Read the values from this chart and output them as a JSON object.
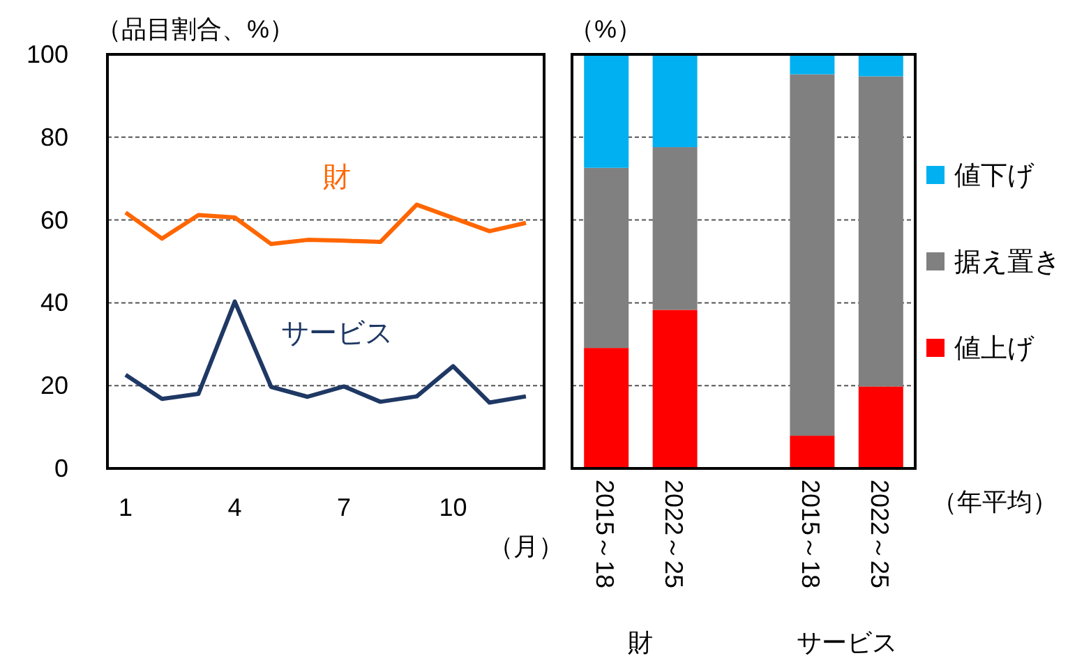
{
  "chart_data": [
    {
      "type": "line",
      "ylabel": "（品目割合、%）",
      "xlabel": "（月）",
      "x": [
        1,
        2,
        3,
        4,
        5,
        6,
        7,
        8,
        9,
        10,
        11,
        12
      ],
      "series": [
        {
          "name": "財",
          "color": "#ff6600",
          "values": [
            61.8,
            55.5,
            61.2,
            60.6,
            54.2,
            55.2,
            55.0,
            54.7,
            63.7,
            60.5,
            57.3,
            59.3
          ]
        },
        {
          "name": "サービス",
          "color": "#1f3864",
          "values": [
            22.6,
            16.8,
            18.0,
            40.3,
            19.7,
            17.3,
            19.8,
            16.1,
            17.4,
            24.7,
            15.9,
            17.4
          ]
        }
      ],
      "xlim": [
        0.5,
        12.5
      ],
      "xticks": [
        1,
        4,
        7,
        10
      ],
      "ylim": [
        0,
        100
      ],
      "yticks": [
        0,
        20,
        40,
        60,
        80,
        100
      ],
      "grid": "y",
      "legend": false
    },
    {
      "type": "bar",
      "stacked": true,
      "ylabel": "（%）",
      "xlabel": "（年平均）",
      "categories": [
        "2015～18",
        "2022～25",
        null,
        "2015～18",
        "2022～25"
      ],
      "series": [
        {
          "name": "値上げ",
          "color": "#ff0000",
          "values": [
            29.1,
            38.3,
            null,
            7.9,
            19.8
          ]
        },
        {
          "name": "据え置き",
          "color": "#808080",
          "values": [
            43.5,
            39.3,
            null,
            87.3,
            74.9
          ]
        },
        {
          "name": "値下げ",
          "color": "#00b0f0",
          "values": [
            27.4,
            22.4,
            null,
            4.8,
            5.3
          ]
        }
      ],
      "annotations": [
        "財",
        "サービス"
      ],
      "ylim": [
        0,
        100
      ],
      "yticks": [
        0,
        20,
        40,
        60,
        80,
        100
      ],
      "tick_labels": "x",
      "grid": "y",
      "legend": "right"
    }
  ]
}
